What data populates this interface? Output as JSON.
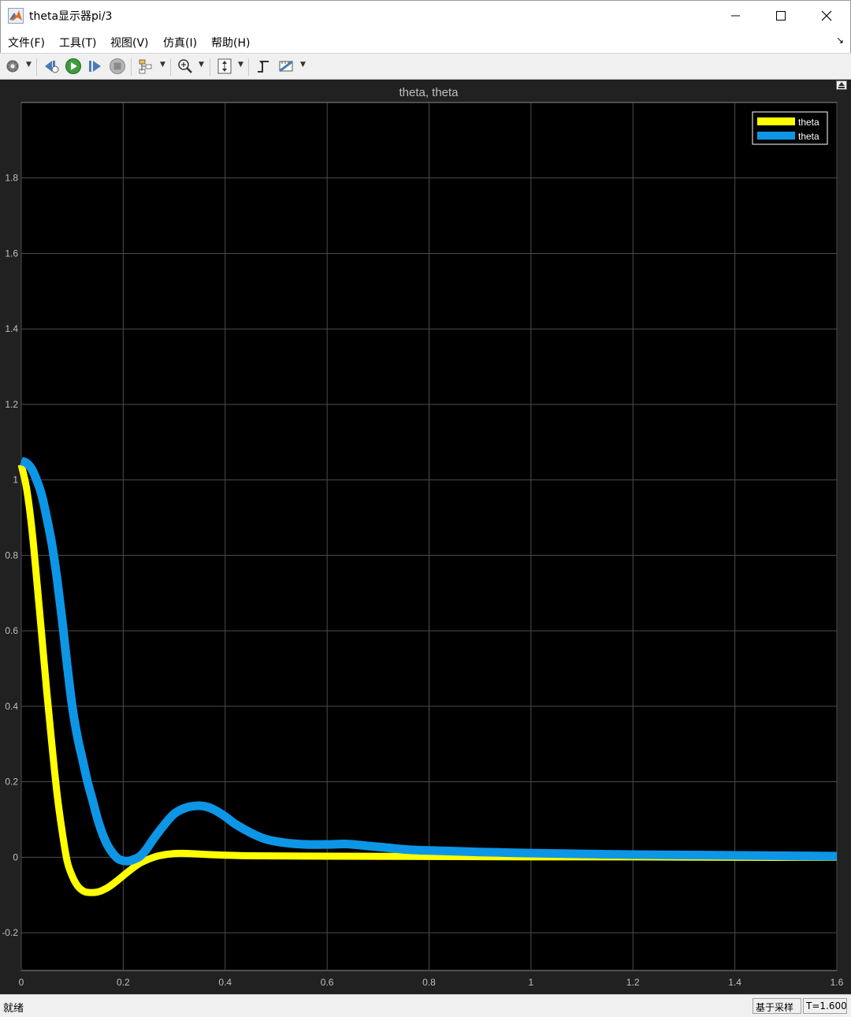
{
  "window": {
    "title": "theta显示器pi/3",
    "icon": "matlab-icon",
    "controls": [
      "minimize-icon",
      "maximize-icon",
      "close-icon"
    ]
  },
  "menu": {
    "items": [
      "文件(F)",
      "工具(T)",
      "视图(V)",
      "仿真(I)",
      "帮助(H)"
    ],
    "expand_glyph": "↘"
  },
  "toolbar": {
    "icons": [
      "settings-gear-icon",
      "step-back-icon",
      "run-icon",
      "step-forward-icon",
      "stop-icon",
      "highlight-block-icon",
      "zoom-in-icon",
      "scale-axes-icon",
      "triggers-icon",
      "measurements-icon"
    ]
  },
  "colors": {
    "plot_bg": "#000000",
    "scope_bg": "#212121",
    "grid": "#4d4d4d",
    "tick_text": "#bfbfbf",
    "series1": "#ffff00",
    "series2": "#0d96e6"
  },
  "chart_data": {
    "type": "line",
    "title": "theta, theta",
    "xlabel": "",
    "ylabel": "",
    "xlim": [
      0,
      1.6
    ],
    "ylim": [
      -0.3,
      2.0
    ],
    "xticks": [
      0,
      0.2,
      0.4,
      0.6,
      0.8,
      1,
      1.2,
      1.4,
      1.6
    ],
    "xtick_labels": [
      "0",
      "0.2",
      "0.4",
      "0.6",
      "0.8",
      "1",
      "1.2",
      "1.4",
      "1.6"
    ],
    "yticks": [
      -0.2,
      0,
      0.2,
      0.4,
      0.6,
      0.8,
      1,
      1.2,
      1.4,
      1.6,
      1.8
    ],
    "ytick_labels": [
      "-0.2",
      "0",
      "0.2",
      "0.4",
      "0.6",
      "0.8",
      "1",
      "1.2",
      "1.4",
      "1.6",
      "1.8"
    ],
    "grid": true,
    "legend": "top-right",
    "series": [
      {
        "name": "theta",
        "color": "#ffff00",
        "x": [
          0,
          0.01,
          0.02,
          0.03,
          0.04,
          0.05,
          0.06,
          0.07,
          0.08,
          0.09,
          0.1,
          0.11,
          0.12,
          0.13,
          0.15,
          0.17,
          0.19,
          0.21,
          0.23,
          0.25,
          0.27,
          0.3,
          0.33,
          0.37,
          0.45,
          0.6,
          0.8,
          1.0,
          1.2,
          1.4,
          1.6
        ],
        "y": [
          1.04,
          0.98,
          0.88,
          0.74,
          0.59,
          0.44,
          0.3,
          0.17,
          0.07,
          -0.01,
          -0.05,
          -0.075,
          -0.088,
          -0.093,
          -0.092,
          -0.08,
          -0.06,
          -0.038,
          -0.018,
          -0.005,
          0.004,
          0.01,
          0.01,
          0.007,
          0.004,
          0.003,
          0.002,
          0.001,
          0.001,
          0.0,
          0.0
        ]
      },
      {
        "name": "theta",
        "color": "#0d96e6",
        "x": [
          0,
          0.01,
          0.02,
          0.03,
          0.04,
          0.05,
          0.06,
          0.07,
          0.08,
          0.09,
          0.1,
          0.11,
          0.12,
          0.13,
          0.14,
          0.15,
          0.16,
          0.17,
          0.18,
          0.19,
          0.2,
          0.21,
          0.22,
          0.23,
          0.24,
          0.25,
          0.26,
          0.28,
          0.3,
          0.32,
          0.34,
          0.36,
          0.38,
          0.4,
          0.42,
          0.45,
          0.48,
          0.52,
          0.56,
          0.6,
          0.64,
          0.68,
          0.72,
          0.76,
          0.8,
          0.9,
          1.0,
          1.1,
          1.2,
          1.3,
          1.4,
          1.5,
          1.6
        ],
        "y": [
          1.05,
          1.045,
          1.03,
          1.0,
          0.96,
          0.9,
          0.83,
          0.74,
          0.63,
          0.51,
          0.4,
          0.32,
          0.26,
          0.2,
          0.15,
          0.1,
          0.06,
          0.03,
          0.01,
          -0.004,
          -0.009,
          -0.01,
          -0.006,
          0.0,
          0.012,
          0.03,
          0.05,
          0.085,
          0.115,
          0.13,
          0.136,
          0.135,
          0.125,
          0.108,
          0.088,
          0.065,
          0.048,
          0.038,
          0.034,
          0.034,
          0.035,
          0.03,
          0.025,
          0.02,
          0.018,
          0.014,
          0.011,
          0.009,
          0.007,
          0.006,
          0.005,
          0.004,
          0.003
        ]
      }
    ]
  },
  "status": {
    "text": "就绪",
    "mode": "基于采样",
    "time": "T=1.600"
  }
}
